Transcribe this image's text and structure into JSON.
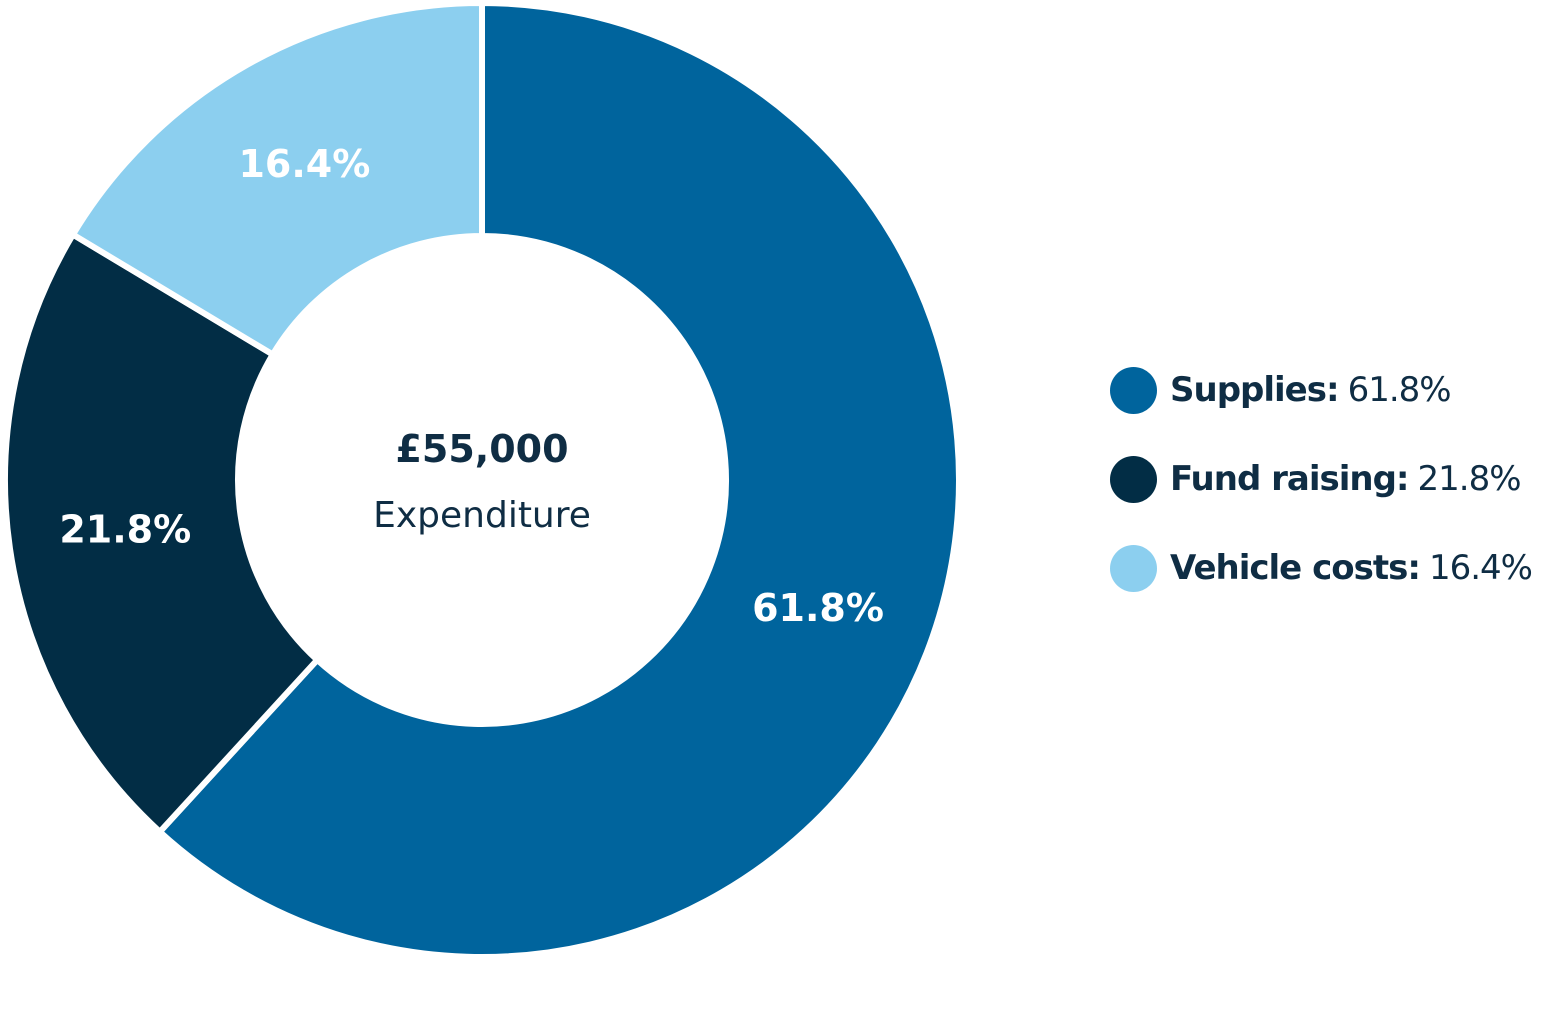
{
  "chart_data": {
    "type": "pie",
    "variant": "donut",
    "center": {
      "amount": "£55,000",
      "caption": "Expenditure"
    },
    "slices": [
      {
        "name": "Supplies",
        "value": 61.8,
        "label": "61.8%",
        "color": "#00649d"
      },
      {
        "name": "Fund raising",
        "value": 21.8,
        "label": "21.8%",
        "color": "#022d45"
      },
      {
        "name": "Vehicle costs",
        "value": 16.4,
        "label": "16.4%",
        "color": "#8ccfef"
      }
    ],
    "legend": {
      "placement": "right",
      "separator": ":",
      "items": [
        {
          "name": "Supplies",
          "value": "61.8%",
          "color": "#00649d"
        },
        {
          "name": "Fund raising",
          "value": "21.8%",
          "color": "#022d45"
        },
        {
          "name": "Vehicle costs",
          "value": "16.4%",
          "color": "#8ccfef"
        }
      ]
    }
  }
}
